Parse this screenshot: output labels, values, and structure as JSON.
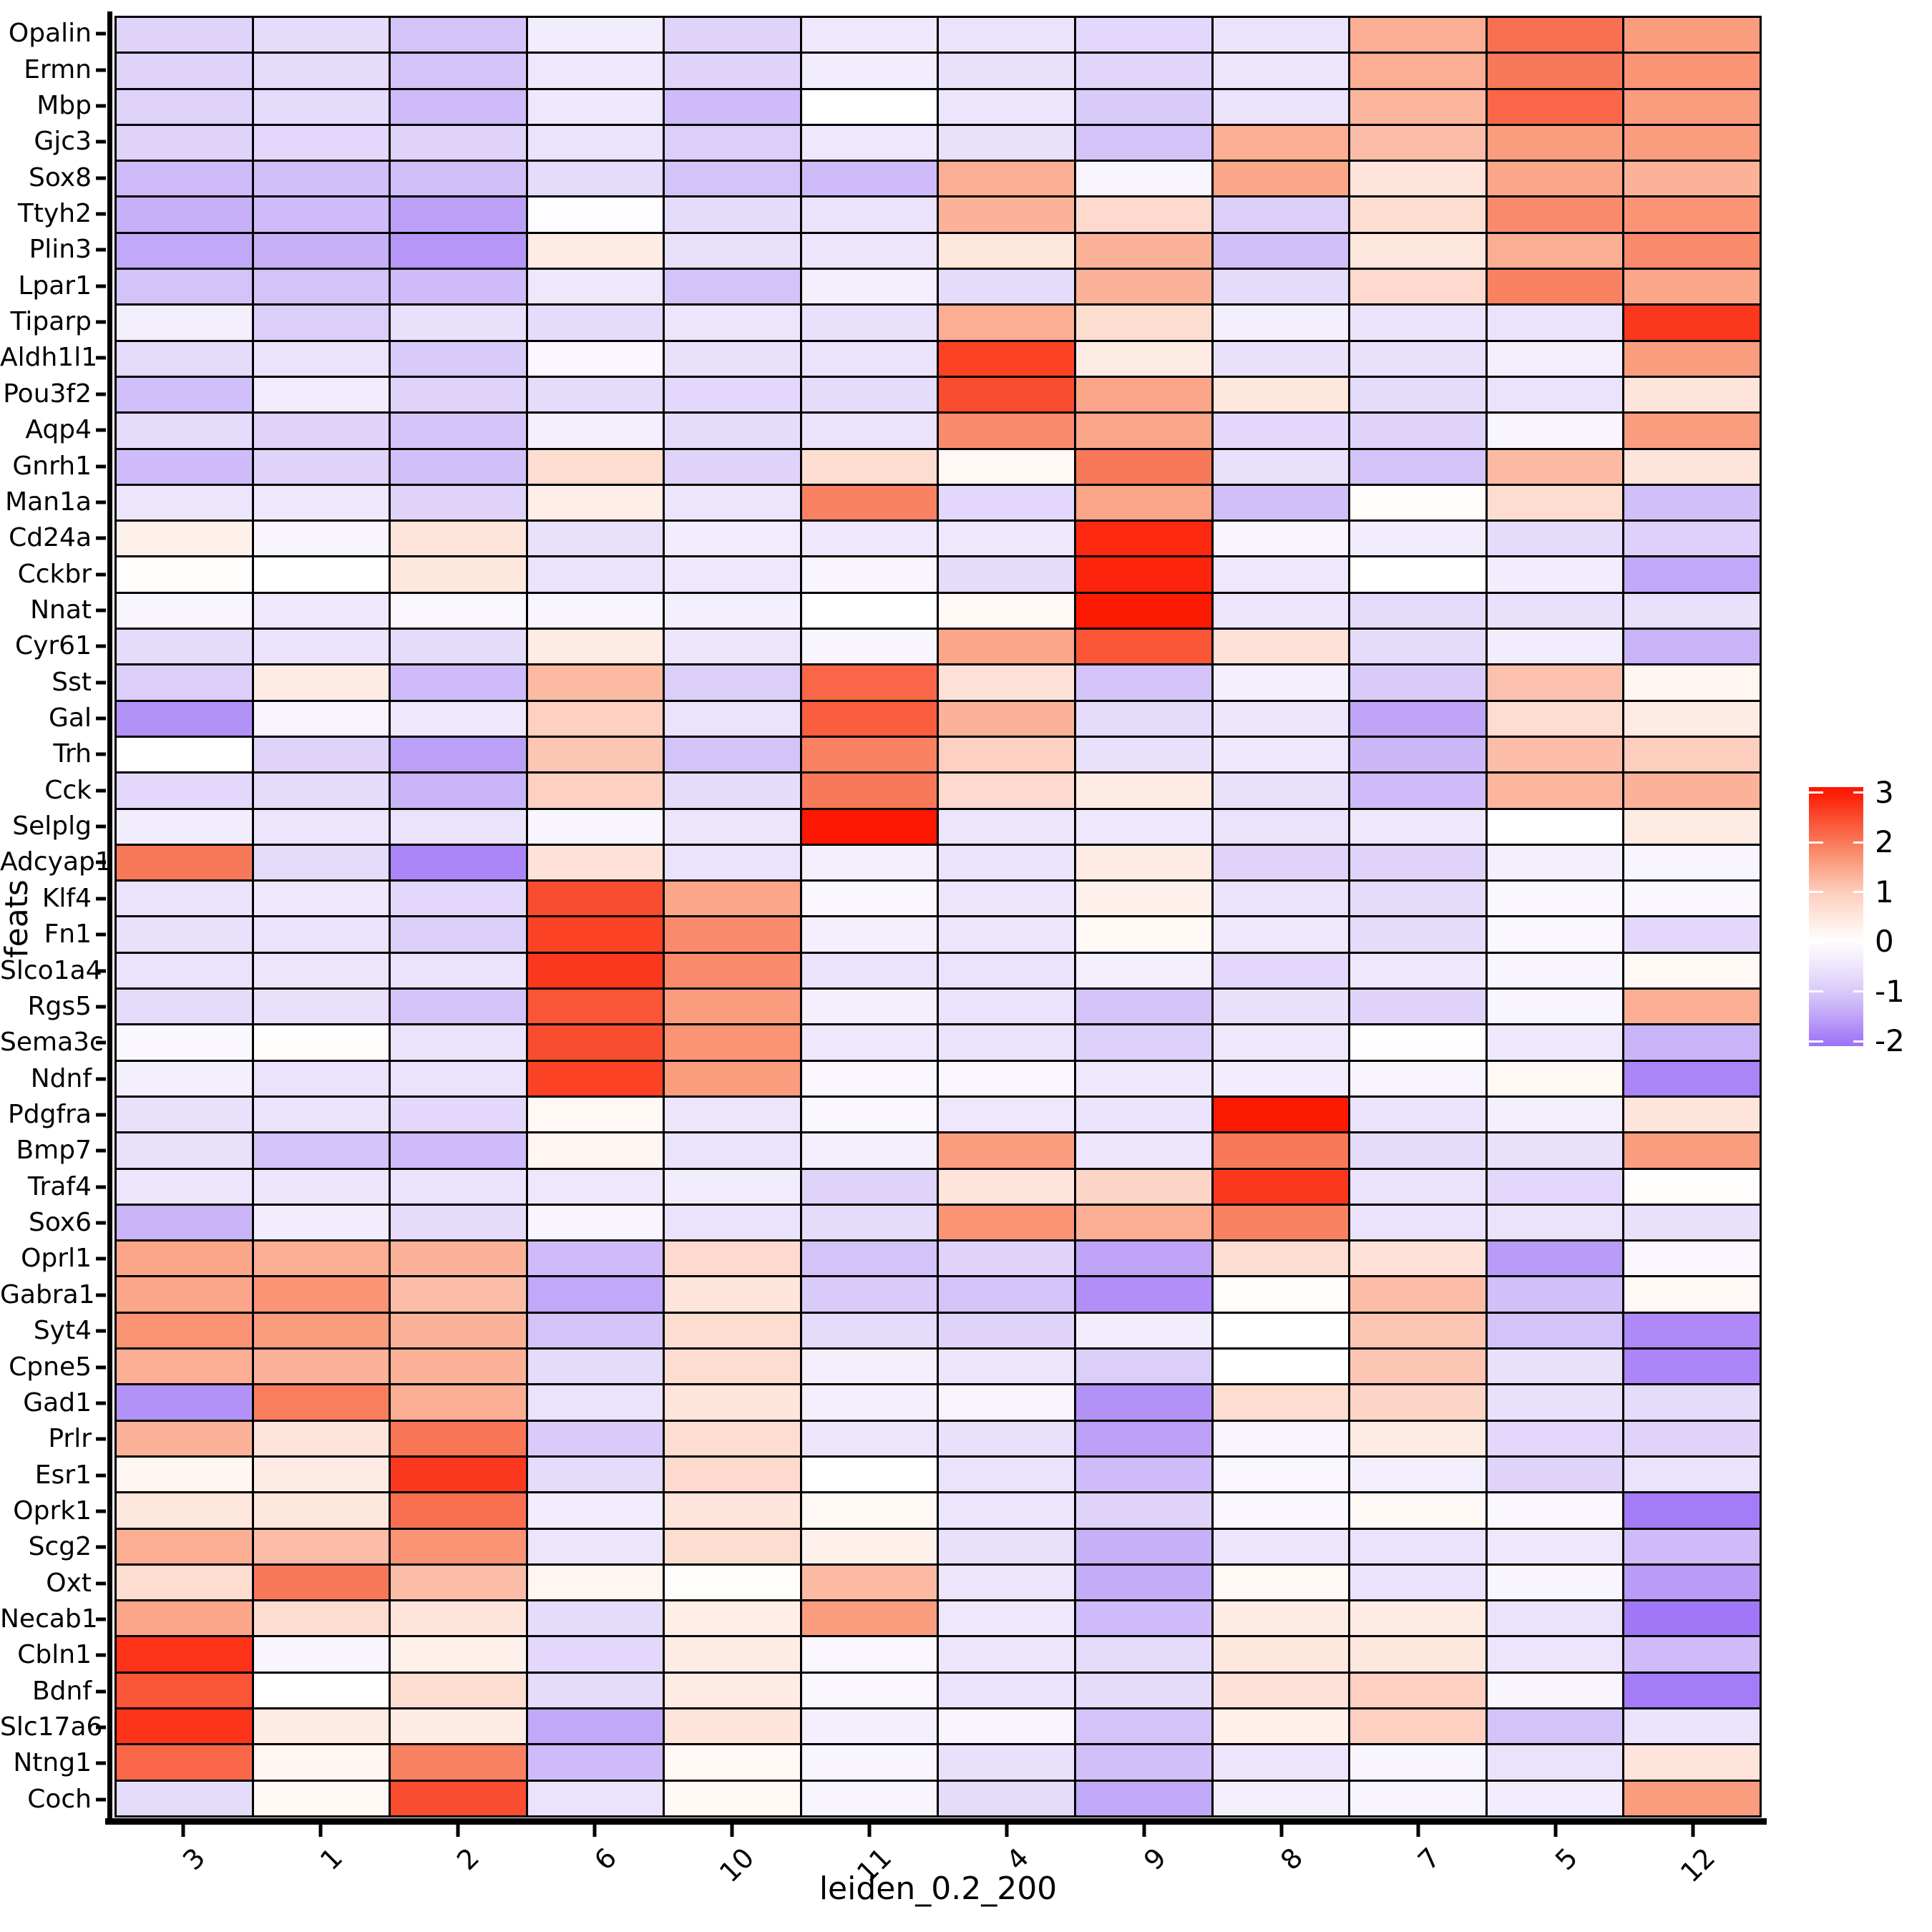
{
  "figure": {
    "xlabel": "leiden_0.2_200",
    "ylabel": "feats"
  },
  "chart_data": {
    "type": "heatmap",
    "title": "",
    "xlabel": "leiden_0.2_200",
    "ylabel": "feats",
    "legend_position": "right",
    "grid": "black cell borders",
    "columns": [
      "3",
      "1",
      "2",
      "6",
      "10",
      "11",
      "4",
      "9",
      "8",
      "7",
      "5",
      "12"
    ],
    "rows": [
      "Opalin",
      "Ermn",
      "Mbp",
      "Gjc3",
      "Sox8",
      "Ttyh2",
      "Plin3",
      "Lpar1",
      "Tiparp",
      "Aldh1l1",
      "Pou3f2",
      "Aqp4",
      "Gnrh1",
      "Man1a",
      "Cd24a",
      "Cckbr",
      "Nnat",
      "Cyr61",
      "Sst",
      "Gal",
      "Trh",
      "Cck",
      "Selplg",
      "Adcyap1",
      "Klf4",
      "Fn1",
      "Slco1a4",
      "Rgs5",
      "Sema3c",
      "Ndnf",
      "Pdgfra",
      "Bmp7",
      "Traf4",
      "Sox6",
      "Oprl1",
      "Gabra1",
      "Syt4",
      "Cpne5",
      "Gad1",
      "Prlr",
      "Esr1",
      "Oprk1",
      "Scg2",
      "Oxt",
      "Necab1",
      "Cbln1",
      "Bdnf",
      "Slc17a6",
      "Ntng1",
      "Coch"
    ],
    "values": [
      [
        -0.85,
        -0.7,
        -1.1,
        -0.35,
        -0.85,
        -0.45,
        -0.55,
        -0.75,
        -0.55,
        1.4,
        2.1,
        1.6
      ],
      [
        -0.85,
        -0.7,
        -1.1,
        -0.45,
        -0.85,
        -0.35,
        -0.6,
        -0.8,
        -0.5,
        1.4,
        2.0,
        1.7
      ],
      [
        -0.85,
        -0.7,
        -1.2,
        -0.45,
        -1.2,
        0.0,
        -0.5,
        -1.0,
        -0.55,
        1.3,
        2.2,
        1.6
      ],
      [
        -0.85,
        -0.75,
        -0.85,
        -0.55,
        -0.95,
        -0.45,
        -0.6,
        -1.1,
        1.4,
        1.2,
        1.6,
        1.6
      ],
      [
        -1.2,
        -1.15,
        -1.15,
        -0.7,
        -1.1,
        -1.2,
        1.4,
        -0.2,
        1.5,
        0.55,
        1.5,
        1.35
      ],
      [
        -1.35,
        -1.2,
        -1.55,
        -0.05,
        -0.7,
        -0.55,
        1.35,
        0.75,
        -0.95,
        0.7,
        1.8,
        1.7
      ],
      [
        -1.45,
        -1.35,
        -1.65,
        0.4,
        -0.6,
        -0.5,
        0.5,
        1.35,
        -1.15,
        0.5,
        1.4,
        1.8
      ],
      [
        -1.1,
        -1.1,
        -1.2,
        -0.45,
        -1.1,
        -0.3,
        -0.7,
        1.35,
        -0.7,
        0.75,
        1.9,
        1.5
      ],
      [
        -0.3,
        -0.95,
        -0.6,
        -0.7,
        -0.5,
        -0.6,
        1.4,
        0.7,
        -0.3,
        -0.55,
        -0.55,
        2.7
      ],
      [
        -0.7,
        -0.55,
        -1.0,
        -0.15,
        -0.6,
        -0.55,
        2.6,
        0.4,
        -0.6,
        -0.6,
        -0.3,
        1.6
      ],
      [
        -1.15,
        -0.35,
        -0.85,
        -0.7,
        -0.75,
        -0.7,
        2.5,
        1.5,
        0.5,
        -0.7,
        -0.55,
        0.55
      ],
      [
        -0.7,
        -0.85,
        -1.1,
        -0.3,
        -0.7,
        -0.55,
        1.8,
        1.5,
        -0.75,
        -0.85,
        -0.2,
        1.6
      ],
      [
        -1.2,
        -0.85,
        -1.15,
        0.7,
        -0.85,
        0.7,
        0.15,
        2.0,
        -0.6,
        -1.1,
        1.25,
        0.55
      ],
      [
        -0.5,
        -0.45,
        -0.85,
        0.35,
        -0.5,
        1.9,
        -0.75,
        1.5,
        -1.15,
        0.05,
        0.7,
        -1.15
      ],
      [
        0.3,
        -0.2,
        0.55,
        -0.6,
        -0.35,
        -0.45,
        -0.45,
        2.85,
        -0.2,
        -0.35,
        -0.7,
        -0.9
      ],
      [
        0.05,
        0.0,
        0.5,
        -0.55,
        -0.45,
        -0.2,
        -0.7,
        2.9,
        -0.45,
        0.0,
        -0.35,
        -1.45
      ],
      [
        -0.2,
        -0.45,
        -0.15,
        -0.2,
        -0.3,
        0.0,
        0.15,
        3.0,
        -0.5,
        -0.7,
        -0.6,
        -0.6
      ],
      [
        -0.7,
        -0.55,
        -0.7,
        0.4,
        -0.5,
        -0.2,
        1.5,
        2.4,
        0.6,
        -0.7,
        -0.35,
        -1.3
      ],
      [
        -0.95,
        0.4,
        -1.2,
        1.25,
        -0.95,
        2.2,
        0.6,
        -1.1,
        -0.3,
        -1.0,
        1.15,
        0.2
      ],
      [
        -1.7,
        -0.2,
        -0.45,
        0.95,
        -0.55,
        2.3,
        1.35,
        -0.7,
        -0.5,
        -1.5,
        0.7,
        0.4
      ],
      [
        0.0,
        -0.85,
        -1.55,
        1.1,
        -1.1,
        1.9,
        0.95,
        -0.6,
        -0.45,
        -1.25,
        1.2,
        1.0
      ],
      [
        -0.75,
        -0.7,
        -1.3,
        0.95,
        -0.7,
        2.0,
        0.75,
        0.4,
        -0.6,
        -1.2,
        1.3,
        1.35
      ],
      [
        -0.35,
        -0.5,
        -0.55,
        -0.2,
        -0.5,
        3.1,
        -0.5,
        -0.45,
        -0.55,
        -0.45,
        0.0,
        0.4
      ],
      [
        2.0,
        -0.7,
        -1.85,
        0.6,
        -0.55,
        -0.3,
        -0.55,
        0.4,
        -0.85,
        -0.85,
        -0.3,
        -0.2
      ],
      [
        -0.55,
        -0.45,
        -0.75,
        2.5,
        1.5,
        -0.15,
        -0.5,
        0.3,
        -0.55,
        -0.7,
        -0.15,
        -0.15
      ],
      [
        -0.6,
        -0.55,
        -0.95,
        2.6,
        1.8,
        -0.3,
        -0.5,
        0.15,
        -0.45,
        -0.7,
        -0.15,
        -0.75
      ],
      [
        -0.55,
        -0.5,
        -0.55,
        2.7,
        1.8,
        -0.55,
        -0.55,
        -0.3,
        -0.75,
        -0.45,
        -0.2,
        0.15
      ],
      [
        -0.7,
        -0.6,
        -1.1,
        2.4,
        1.6,
        -0.3,
        -0.55,
        -1.1,
        -0.6,
        -0.85,
        -0.2,
        1.4
      ],
      [
        -0.15,
        0.05,
        -0.55,
        2.5,
        1.7,
        -0.45,
        -0.55,
        -0.9,
        -0.45,
        -0.05,
        -0.45,
        -1.3
      ],
      [
        -0.3,
        -0.55,
        -0.55,
        2.6,
        1.6,
        -0.15,
        -0.15,
        -0.45,
        -0.35,
        -0.2,
        0.15,
        -1.85
      ],
      [
        -0.6,
        -0.55,
        -0.75,
        0.15,
        -0.5,
        -0.15,
        -0.45,
        -0.55,
        3.0,
        -0.55,
        -0.3,
        0.55
      ],
      [
        -0.6,
        -1.1,
        -1.2,
        0.2,
        -0.55,
        -0.3,
        1.6,
        -0.5,
        2.0,
        -0.7,
        -0.6,
        1.6
      ],
      [
        -0.5,
        -0.5,
        -0.55,
        -0.45,
        -0.35,
        -0.85,
        0.55,
        0.85,
        2.7,
        -0.55,
        -0.75,
        0.05
      ],
      [
        -1.3,
        -0.35,
        -0.7,
        -0.2,
        -0.55,
        -0.7,
        1.7,
        1.4,
        1.9,
        -0.55,
        -0.55,
        -0.6
      ],
      [
        1.5,
        1.4,
        1.35,
        -1.2,
        0.75,
        -1.1,
        -0.85,
        -1.5,
        0.7,
        0.6,
        -1.6,
        -0.15
      ],
      [
        1.5,
        1.7,
        1.2,
        -1.45,
        0.55,
        -1.0,
        -1.1,
        -1.75,
        0.05,
        1.2,
        -1.15,
        0.15
      ],
      [
        1.7,
        1.6,
        1.35,
        -1.1,
        0.7,
        -0.7,
        -0.85,
        -0.35,
        0.0,
        1.1,
        -1.1,
        -1.8
      ],
      [
        1.4,
        1.35,
        1.35,
        -0.7,
        0.7,
        -0.3,
        -0.5,
        -0.95,
        0.0,
        1.1,
        -0.6,
        -1.85
      ],
      [
        -1.7,
        1.95,
        1.4,
        -0.55,
        0.55,
        -0.3,
        -0.2,
        -1.7,
        0.7,
        0.85,
        -0.6,
        -0.7
      ],
      [
        1.35,
        0.55,
        2.05,
        -1.0,
        0.7,
        -0.5,
        -0.6,
        -1.55,
        -0.2,
        0.4,
        -0.75,
        -0.85
      ],
      [
        0.2,
        0.4,
        2.7,
        -0.7,
        0.75,
        0.0,
        -0.55,
        -1.2,
        -0.15,
        -0.3,
        -0.85,
        -0.55
      ],
      [
        0.5,
        0.5,
        2.1,
        -0.35,
        0.55,
        0.15,
        -0.5,
        -0.85,
        -0.15,
        0.15,
        -0.15,
        -1.95
      ],
      [
        1.4,
        1.2,
        1.7,
        -0.5,
        0.7,
        0.3,
        -0.6,
        -1.35,
        -0.5,
        -0.55,
        -0.45,
        -1.2
      ],
      [
        0.7,
        2.0,
        1.2,
        0.2,
        0.05,
        1.25,
        -0.5,
        -1.4,
        0.15,
        -0.55,
        -0.2,
        -1.6
      ],
      [
        1.5,
        0.7,
        0.55,
        -0.7,
        0.35,
        1.6,
        -0.45,
        -1.2,
        0.4,
        0.4,
        -0.55,
        -2.0
      ],
      [
        2.75,
        -0.2,
        0.3,
        -0.75,
        0.4,
        -0.15,
        -0.5,
        -0.7,
        0.5,
        0.5,
        -0.5,
        -1.2
      ],
      [
        2.4,
        0.0,
        0.7,
        -0.7,
        0.4,
        -0.15,
        -0.55,
        -0.7,
        0.6,
        0.95,
        -0.2,
        -1.95
      ],
      [
        2.75,
        0.4,
        0.4,
        -1.45,
        0.55,
        -0.3,
        -0.2,
        -1.1,
        0.3,
        0.95,
        -1.1,
        -0.55
      ],
      [
        2.2,
        0.2,
        1.9,
        -1.2,
        0.15,
        -0.2,
        -0.6,
        -1.15,
        -0.5,
        -0.2,
        -0.55,
        0.55
      ],
      [
        -0.7,
        0.15,
        2.5,
        -0.55,
        0.15,
        -0.2,
        -0.7,
        -1.45,
        -0.3,
        -0.2,
        -0.35,
        1.6
      ]
    ],
    "value_range": [
      -2.1,
      3.15
    ],
    "colorbar": {
      "ticks": [
        3,
        2,
        1,
        0,
        -1,
        -2
      ],
      "top_value": 3.115,
      "bottom_value": -2.1
    },
    "colormap": {
      "name": "red-white-purple diverging",
      "anchors": [
        [
          -2.1,
          [
            158,
            114,
            246
          ]
        ],
        [
          -2.0,
          [
            162,
            119,
            247
          ]
        ],
        [
          -1.5,
          [
            191,
            164,
            248
          ]
        ],
        [
          -1.0,
          [
            217,
            203,
            249
          ]
        ],
        [
          -0.5,
          [
            237,
            229,
            252
          ]
        ],
        [
          0.0,
          [
            255,
            255,
            255
          ]
        ],
        [
          0.5,
          [
            254,
            231,
            221
          ]
        ],
        [
          1.0,
          [
            253,
            205,
            190
          ]
        ],
        [
          1.5,
          [
            251,
            166,
            136
          ]
        ],
        [
          2.0,
          [
            248,
            121,
            89
          ]
        ],
        [
          2.5,
          [
            250,
            76,
            46
          ]
        ],
        [
          3.0,
          [
            253,
            26,
            3
          ]
        ],
        [
          3.15,
          [
            253,
            20,
            0
          ]
        ]
      ]
    },
    "colors": {
      "axis": "#000000",
      "background": "#ffffff",
      "gridline": "#000000"
    }
  }
}
